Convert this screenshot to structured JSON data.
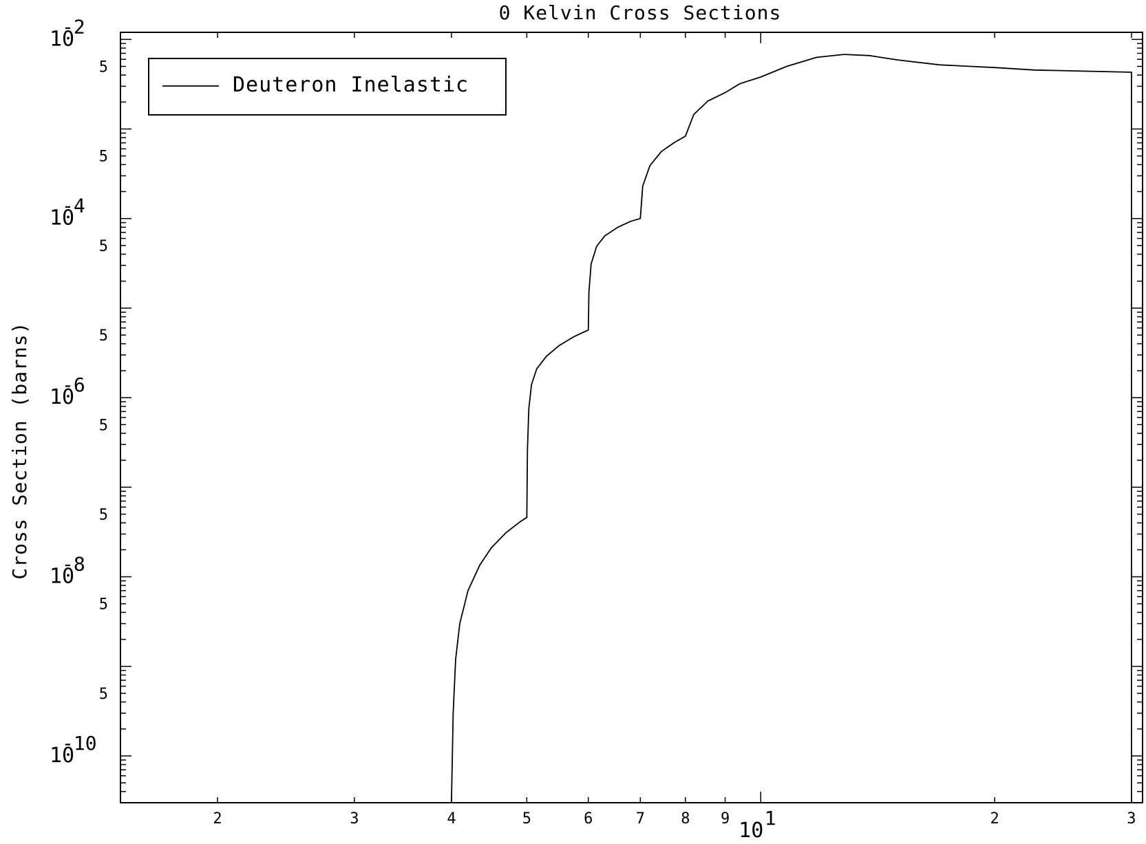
{
  "chart_data": {
    "type": "line",
    "title": "0 Kelvin Cross Sections",
    "xlabel": "",
    "ylabel": "Cross Section (barns)",
    "xscale": "log",
    "yscale": "log",
    "xlim": [
      1.5,
      31.0
    ],
    "ylim": [
      3e-11,
      0.012
    ],
    "grid": false,
    "legend_position": "top-left",
    "x_major_ticks": [
      {
        "value": 10,
        "base": "10",
        "exp": "1"
      }
    ],
    "x_minor_ticks": [
      {
        "value": 2,
        "label": "2"
      },
      {
        "value": 3,
        "label": "3"
      },
      {
        "value": 4,
        "label": "4"
      },
      {
        "value": 5,
        "label": "5"
      },
      {
        "value": 6,
        "label": "6"
      },
      {
        "value": 7,
        "label": "7"
      },
      {
        "value": 8,
        "label": "8"
      },
      {
        "value": 9,
        "label": "9"
      },
      {
        "value": 20,
        "label": "2"
      },
      {
        "value": 30,
        "label": "3"
      }
    ],
    "y_major_ticks": [
      {
        "value": 0.01,
        "base": "10",
        "exp": "-2"
      },
      {
        "value": 0.0001,
        "base": "10",
        "exp": "-4"
      },
      {
        "value": 1e-06,
        "base": "10",
        "exp": "-6"
      },
      {
        "value": 1e-08,
        "base": "10",
        "exp": "-8"
      },
      {
        "value": 1e-10,
        "base": "10",
        "exp": "-10"
      }
    ],
    "y_minor_labels": [
      {
        "value": 0.005,
        "label": "5"
      },
      {
        "value": 0.0005,
        "label": "5"
      },
      {
        "value": 5e-05,
        "label": "5"
      },
      {
        "value": 5e-06,
        "label": "5"
      },
      {
        "value": 5e-07,
        "label": "5"
      },
      {
        "value": 5e-08,
        "label": "5"
      },
      {
        "value": 5e-09,
        "label": "5"
      },
      {
        "value": 5e-10,
        "label": "5"
      }
    ],
    "series": [
      {
        "name": "Deuteron Inelastic",
        "color": "#000000",
        "x": [
          4.0,
          4.02,
          4.05,
          4.1,
          4.2,
          4.35,
          4.5,
          4.7,
          4.9,
          5.0,
          5.01,
          5.03,
          5.07,
          5.15,
          5.3,
          5.5,
          5.75,
          6.0,
          6.01,
          6.05,
          6.15,
          6.3,
          6.55,
          6.8,
          7.0,
          7.05,
          7.2,
          7.45,
          7.75,
          8.0,
          8.2,
          8.55,
          9.0,
          9.4,
          10.0,
          10.8,
          11.8,
          12.8,
          13.8,
          15.0,
          17.0,
          20.0,
          22.5,
          30.0,
          30.0
        ],
        "y": [
          3e-11,
          3e-10,
          1.2e-09,
          3e-09,
          7e-09,
          1.35e-08,
          2.1e-08,
          3.1e-08,
          4.1e-08,
          4.6e-08,
          2.6e-07,
          7.5e-07,
          1.4e-06,
          2.1e-06,
          2.9e-06,
          3.8e-06,
          4.8e-06,
          5.7e-06,
          1.5e-05,
          3.1e-05,
          4.9e-05,
          6.4e-05,
          8e-05,
          9.3e-05,
          0.0001,
          0.00023,
          0.00039,
          0.00056,
          0.00071,
          0.00083,
          0.00145,
          0.00205,
          0.00255,
          0.0032,
          0.0038,
          0.005,
          0.0063,
          0.0068,
          0.0066,
          0.0059,
          0.0052,
          0.00485,
          0.00455,
          0.0043,
          3e-11
        ]
      }
    ]
  }
}
